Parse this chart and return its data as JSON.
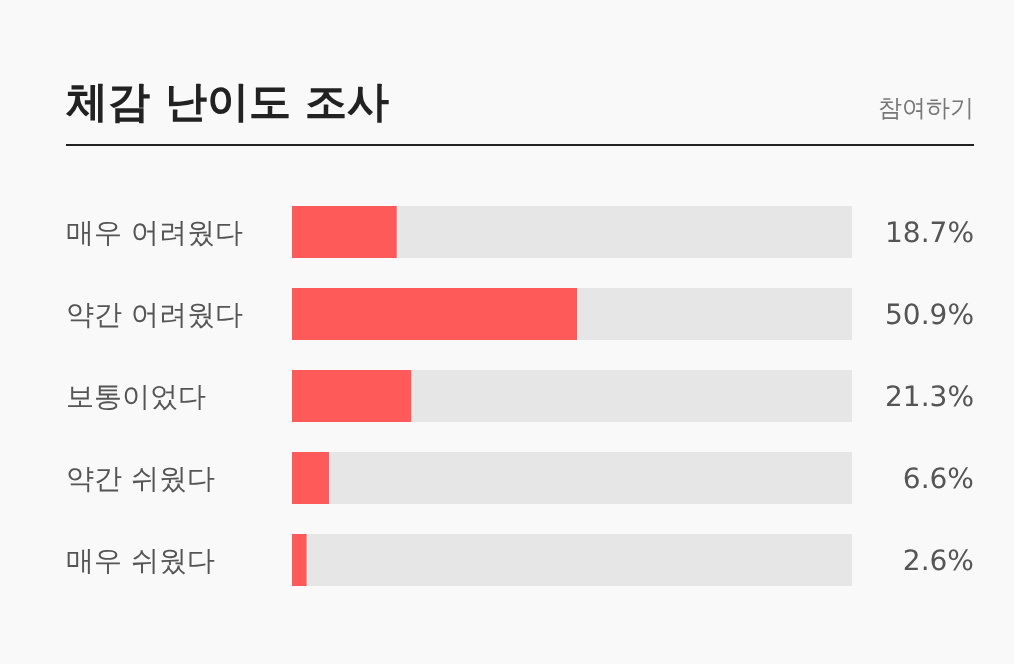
{
  "chart_data": {
    "type": "bar",
    "orientation": "horizontal",
    "title": "체감 난이도 조사",
    "annotations": [
      "참여하기"
    ],
    "categories": [
      "매우 어려웠다",
      "약간 어려웠다",
      "보통이었다",
      "약간 쉬웠다",
      "매우 쉬웠다"
    ],
    "values": [
      18.7,
      50.9,
      21.3,
      6.6,
      2.6
    ],
    "value_labels": [
      "18.7%",
      "50.9%",
      "21.3%",
      "6.6%",
      "2.6%"
    ],
    "color": "#ff5a5a",
    "xlim": [
      0,
      100
    ]
  }
}
